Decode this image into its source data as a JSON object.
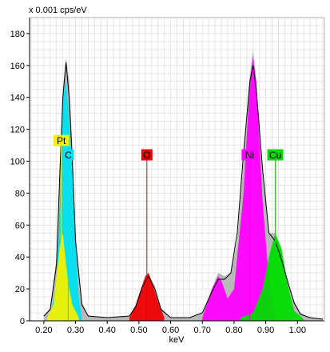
{
  "chart_data": {
    "type": "area",
    "unit_label": "x 0.001 cps/eV",
    "xlabel": "keV",
    "xlim": [
      0.155,
      1.085
    ],
    "ylim": [
      0,
      190
    ],
    "x_ticks": [
      0.2,
      0.3,
      0.4,
      0.5,
      0.6,
      0.7,
      0.8,
      0.9,
      1.0
    ],
    "x_tick_labels": [
      "0.20",
      "0.30",
      "0.40",
      "0.50",
      "0.60",
      "0.70",
      "0.80",
      "0.90",
      "1.00"
    ],
    "y_ticks": [
      0,
      20,
      40,
      60,
      80,
      100,
      120,
      140,
      160,
      180
    ],
    "y_tick_labels": [
      "0",
      "20",
      "40",
      "60",
      "80",
      "100",
      "120",
      "140",
      "160",
      "180"
    ],
    "grid": true,
    "colors": {
      "C": "#00e0f0",
      "Pt": "#f0f000",
      "O": "#ee0000",
      "Ni": "#ff00ff",
      "Cu": "#00dd00",
      "envelope": "#b8b8b8",
      "fit_line": "#000000"
    },
    "series": [
      {
        "name": "C",
        "x": [
          0.22,
          0.24,
          0.25,
          0.26,
          0.27,
          0.28,
          0.29,
          0.3,
          0.31,
          0.32
        ],
        "values": [
          2,
          25,
          75,
          140,
          150,
          125,
          95,
          50,
          15,
          2
        ]
      },
      {
        "name": "Pt",
        "x": [
          0.21,
          0.23,
          0.24,
          0.25,
          0.26,
          0.27,
          0.28,
          0.29,
          0.31
        ],
        "values": [
          2,
          10,
          28,
          46,
          55,
          35,
          20,
          10,
          2
        ]
      },
      {
        "name": "O",
        "x": [
          0.47,
          0.49,
          0.51,
          0.52,
          0.53,
          0.54,
          0.56,
          0.58
        ],
        "values": [
          2,
          10,
          22,
          28,
          30,
          25,
          12,
          2
        ]
      },
      {
        "name": "Ni",
        "x": [
          0.7,
          0.73,
          0.75,
          0.76,
          0.78,
          0.8,
          0.83,
          0.85,
          0.86,
          0.87,
          0.89,
          0.91,
          0.93
        ],
        "values": [
          2,
          20,
          28,
          25,
          14,
          20,
          80,
          150,
          165,
          150,
          75,
          25,
          3
        ]
      },
      {
        "name": "Cu",
        "x": [
          0.82,
          0.86,
          0.89,
          0.91,
          0.93,
          0.95,
          0.97,
          0.99,
          1.02
        ],
        "values": [
          2,
          5,
          20,
          40,
          55,
          45,
          22,
          6,
          1
        ]
      }
    ],
    "envelope": {
      "x": [
        0.2,
        0.22,
        0.24,
        0.25,
        0.26,
        0.27,
        0.28,
        0.29,
        0.3,
        0.32,
        0.34,
        0.4,
        0.47,
        0.49,
        0.51,
        0.53,
        0.55,
        0.57,
        0.6,
        0.66,
        0.7,
        0.73,
        0.75,
        0.77,
        0.79,
        0.81,
        0.83,
        0.85,
        0.86,
        0.87,
        0.89,
        0.91,
        0.93,
        0.95,
        0.97,
        0.99,
        1.01,
        1.04,
        1.08
      ],
      "values": [
        3,
        8,
        40,
        95,
        145,
        165,
        150,
        110,
        55,
        12,
        3,
        2,
        3,
        10,
        22,
        29,
        22,
        8,
        2,
        2,
        5,
        20,
        30,
        28,
        30,
        50,
        100,
        155,
        170,
        150,
        95,
        55,
        55,
        40,
        25,
        12,
        5,
        2,
        1
      ]
    },
    "fit_line": {
      "x": [
        0.2,
        0.22,
        0.24,
        0.25,
        0.26,
        0.27,
        0.28,
        0.29,
        0.3,
        0.32,
        0.34,
        0.4,
        0.47,
        0.49,
        0.51,
        0.53,
        0.55,
        0.57,
        0.6,
        0.66,
        0.7,
        0.73,
        0.75,
        0.77,
        0.79,
        0.81,
        0.83,
        0.85,
        0.86,
        0.87,
        0.89,
        0.91,
        0.93,
        0.95,
        0.97,
        0.99,
        1.01,
        1.04,
        1.08
      ],
      "values": [
        3,
        7,
        35,
        90,
        140,
        162,
        140,
        100,
        50,
        10,
        3,
        2,
        3,
        9,
        21,
        28,
        20,
        7,
        2,
        2,
        5,
        18,
        26,
        26,
        30,
        55,
        105,
        150,
        160,
        145,
        95,
        55,
        50,
        38,
        24,
        11,
        4,
        2,
        1
      ]
    },
    "annotations": [
      {
        "label": "Pt",
        "x": 0.255,
        "y": 113,
        "color": "#f0f000"
      },
      {
        "label": "C",
        "x": 0.277,
        "y": 104,
        "color": "#00e0f0"
      },
      {
        "label": "O",
        "x": 0.525,
        "y": 104,
        "color": "#ee0000"
      },
      {
        "label": "Ni",
        "x": 0.849,
        "y": 104,
        "color": "#ff00ff"
      },
      {
        "label": "Cu",
        "x": 0.93,
        "y": 104,
        "color": "#00dd00"
      }
    ]
  }
}
